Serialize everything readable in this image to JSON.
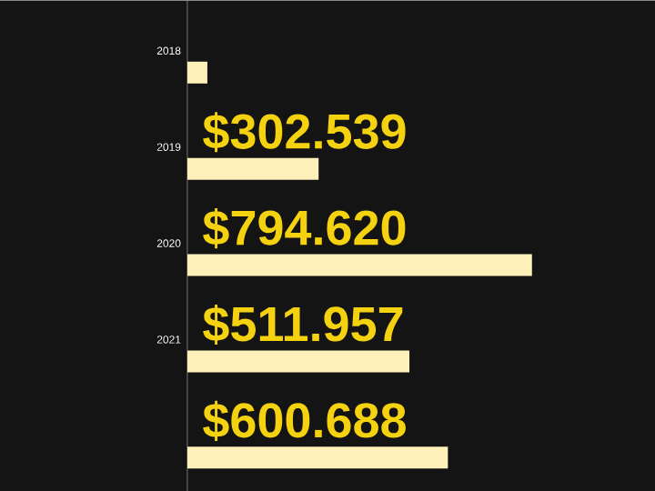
{
  "chart_data": {
    "type": "bar",
    "orientation": "horizontal",
    "categories": [
      "2018",
      "2019",
      "2020",
      "2021",
      null
    ],
    "values": [
      46,
      302.539,
      794.62,
      511.957,
      600.688
    ],
    "value_labels": [
      null,
      "$302.539",
      "$794.620",
      "$511.957",
      "$600.688"
    ],
    "color": "#fdf0b8"
  }
}
